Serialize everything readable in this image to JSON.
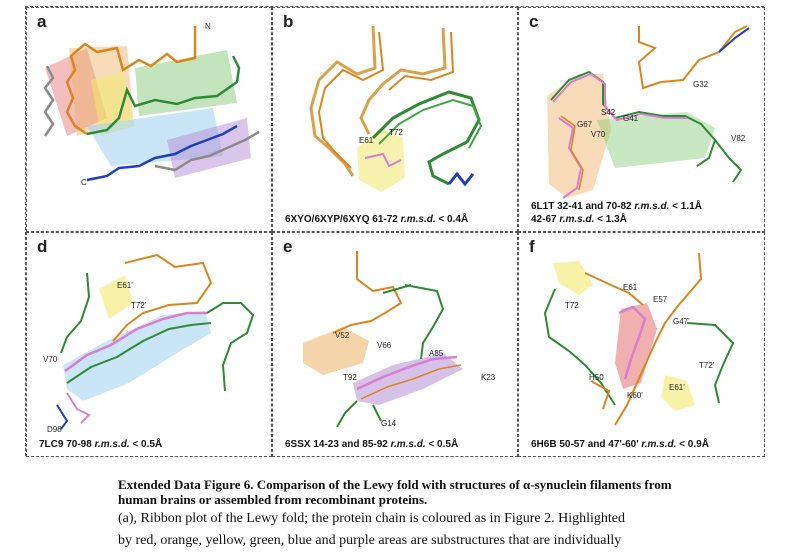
{
  "panels": [
    {
      "label": "a",
      "caption_text": "",
      "residues": [
        {
          "text": "N"
        },
        {
          "text": "C"
        }
      ]
    },
    {
      "label": "b",
      "caption_text": "6XYO/6XYP/6XYQ 61-72 ",
      "caption_rmsd": "r.m.s.d.",
      "caption_tail": " < 0.4Å",
      "residues": [
        {
          "text": "E61"
        },
        {
          "text": "T72"
        }
      ]
    },
    {
      "label": "c",
      "caption_text": "6L1T 32-41 and 70-82 ",
      "caption_rmsd": "r.m.s.d.",
      "caption_tail": " < 1.1Å",
      "caption_line2_text": "42-67 ",
      "caption_line2_rmsd": "r.m.s.d.",
      "caption_line2_tail": " < 1.3Å",
      "residues": [
        {
          "text": "G32"
        },
        {
          "text": "S42"
        },
        {
          "text": "G41"
        },
        {
          "text": "G67"
        },
        {
          "text": "V70"
        },
        {
          "text": "V82"
        }
      ]
    },
    {
      "label": "d",
      "caption_text": "7LC9 70-98 ",
      "caption_rmsd": "r.m.s.d.",
      "caption_tail": " < 0.5Å",
      "residues": [
        {
          "text": "E61'"
        },
        {
          "text": "T72'"
        },
        {
          "text": "V70"
        },
        {
          "text": "D98"
        }
      ]
    },
    {
      "label": "e",
      "caption_text": "6SSX 14-23 and 85-92 ",
      "caption_rmsd": "r.m.s.d.",
      "caption_tail": " < 0.5Å",
      "residues": [
        {
          "text": "V52"
        },
        {
          "text": "V66"
        },
        {
          "text": "A85"
        },
        {
          "text": "T92"
        },
        {
          "text": "K23"
        },
        {
          "text": "G14"
        }
      ]
    },
    {
      "label": "f",
      "caption_text": "6H6B 50-57 and 47'-60' ",
      "caption_rmsd": "r.m.s.d.",
      "caption_tail": " < 0.9Å",
      "residues": [
        {
          "text": "E61"
        },
        {
          "text": "T72"
        },
        {
          "text": "E57"
        },
        {
          "text": "G47'"
        },
        {
          "text": "H50"
        },
        {
          "text": "T72'"
        },
        {
          "text": "E61'"
        },
        {
          "text": "K60'"
        }
      ]
    }
  ],
  "colors": {
    "orange": "#d9861f",
    "green": "#2e8a34",
    "blue": "#1f3fb8",
    "pink": "#d77fd0",
    "grey": "#8b8b8b"
  },
  "figure_text": {
    "title": "Extended Data Figure 6. Comparison of the Lewy fold with structures of α-synuclein filaments from human brains or assembled from recombinant proteins.",
    "body_line1": "(a), Ribbon plot of the Lewy fold; the protein chain is coloured as in Figure 2. Highlighted",
    "body_line2": "by red, orange, yellow, green, blue and purple areas are substructures that are individually"
  }
}
